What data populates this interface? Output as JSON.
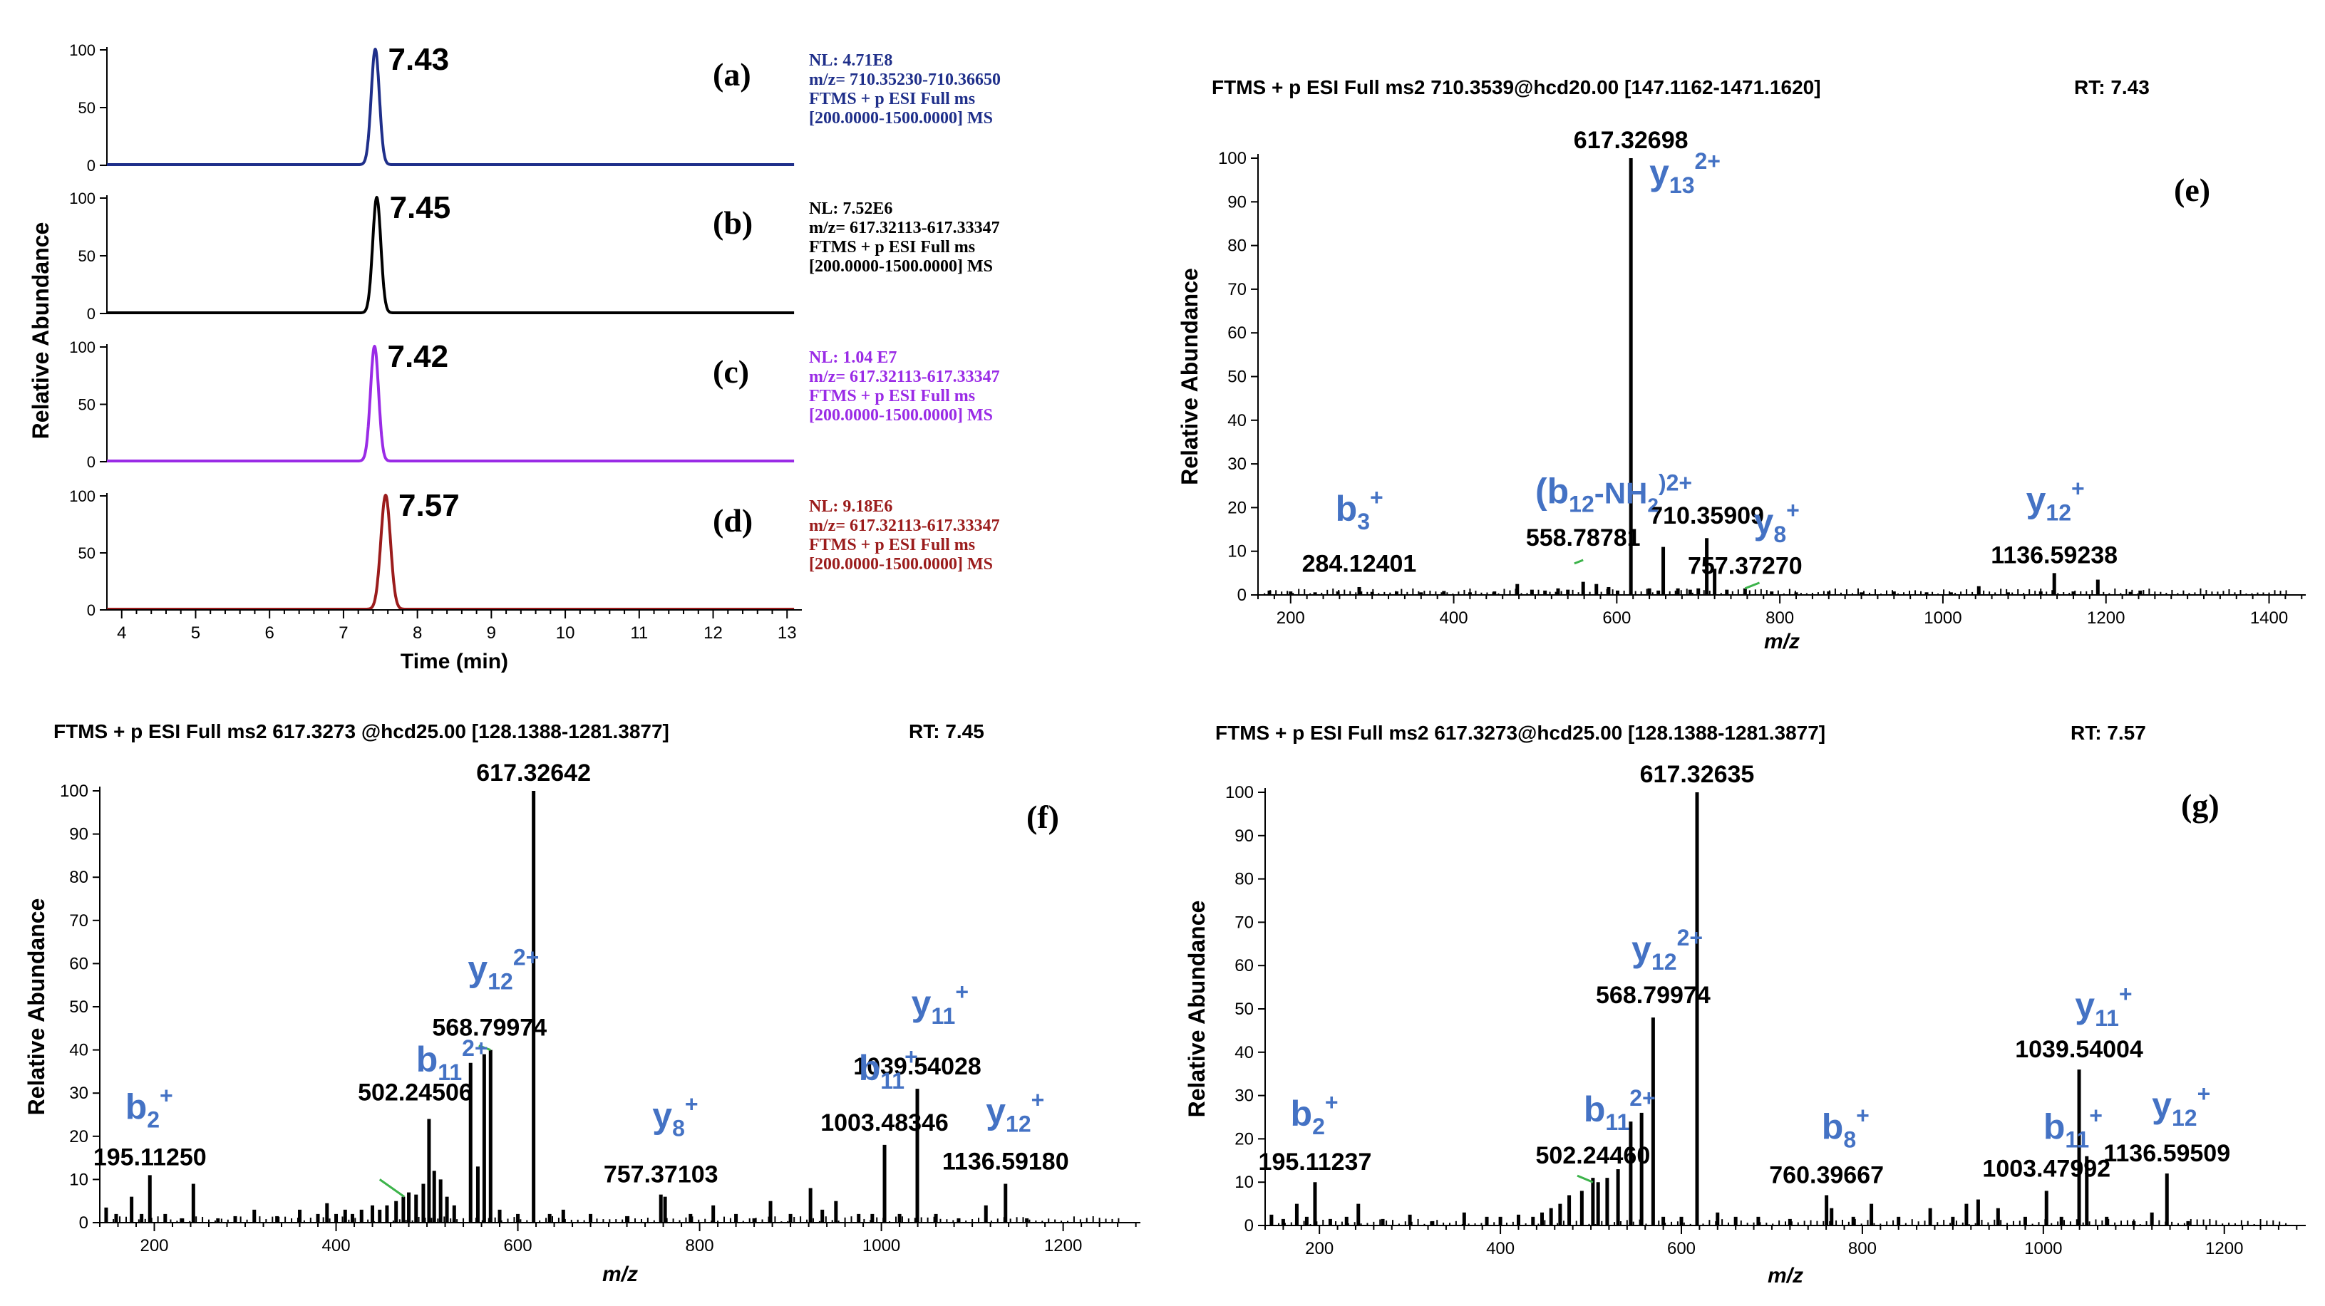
{
  "figure": {
    "colors": {
      "axis": "#000000",
      "ion": "#4472C4",
      "pointer": "#3cb34a"
    }
  },
  "chart_data": [
    {
      "id": "chroms",
      "type": "line",
      "x_range": [
        3.8,
        13.2
      ],
      "x_ticks": [
        4,
        5,
        6,
        7,
        8,
        9,
        10,
        11,
        12,
        13
      ],
      "y_ticks": [
        0,
        50,
        100
      ],
      "xlabel": "Time (min)",
      "ylabel": "Relative Abundance",
      "traces": [
        {
          "panel": "(a)",
          "rt": 7.43,
          "rt_label": "7.43",
          "sigma": 0.055,
          "color": "#1f2f8a",
          "info": [
            "NL: 4.71E8",
            "m/z= 710.35230-710.36650",
            "FTMS + p ESI Full ms",
            "[200.0000-1500.0000]  MS"
          ]
        },
        {
          "panel": "(b)",
          "rt": 7.45,
          "rt_label": "7.45",
          "sigma": 0.055,
          "color": "#000000",
          "info": [
            "NL: 7.52E6",
            "m/z= 617.32113-617.33347",
            "FTMS + p ESI Full ms",
            "[200.0000-1500.0000]  MS"
          ]
        },
        {
          "panel": "(c)",
          "rt": 7.42,
          "rt_label": "7.42",
          "sigma": 0.055,
          "color": "#9a2be6",
          "info": [
            "NL: 1.04 E7",
            "m/z= 617.32113-617.33347",
            "FTMS + p ESI Full ms",
            "[200.0000-1500.0000]  MS"
          ]
        },
        {
          "panel": "(d)",
          "rt": 7.57,
          "rt_label": "7.57",
          "sigma": 0.065,
          "color": "#9b1c1c",
          "info": [
            "NL: 9.18E6",
            "m/z= 617.32113-617.33347",
            "FTMS + p ESI Full ms",
            "[200.0000-1500.0000]  MS"
          ]
        }
      ]
    },
    {
      "id": "e",
      "type": "bar",
      "panel": "(e)",
      "title": "FTMS + p ESI Full ms2 710.3539@hcd20.00 [147.1162-1471.1620]",
      "rt": "RT:  7.43",
      "xlabel": "m/z",
      "ylabel": "Relative Abundance",
      "x_range": [
        160,
        1445
      ],
      "x_ticks": [
        200,
        400,
        600,
        800,
        1000,
        1200,
        1400
      ],
      "y_ticks": [
        0,
        10,
        20,
        30,
        40,
        50,
        60,
        70,
        80,
        90,
        100
      ],
      "peaks": [
        [
          174,
          1
        ],
        [
          200,
          0.8
        ],
        [
          230,
          0.6
        ],
        [
          258,
          0.8
        ],
        [
          284.12,
          1.8
        ],
        [
          300,
          0.7
        ],
        [
          330,
          0.8
        ],
        [
          360,
          0.6
        ],
        [
          388,
          0.9
        ],
        [
          420,
          0.6
        ],
        [
          450,
          0.8
        ],
        [
          478,
          2.5
        ],
        [
          496,
          1.2
        ],
        [
          512,
          1
        ],
        [
          528,
          1.5
        ],
        [
          540,
          1.2
        ],
        [
          558.79,
          3
        ],
        [
          575,
          2.5
        ],
        [
          590,
          1.8
        ],
        [
          601,
          1
        ],
        [
          617.33,
          100
        ],
        [
          640,
          1.5
        ],
        [
          651,
          1
        ],
        [
          657,
          11
        ],
        [
          675,
          1.5
        ],
        [
          690,
          1.2
        ],
        [
          700,
          1.5
        ],
        [
          710.36,
          13
        ],
        [
          720,
          6
        ],
        [
          735,
          1.2
        ],
        [
          757.37,
          1.5
        ],
        [
          790,
          0.8
        ],
        [
          820,
          0.6
        ],
        [
          860,
          0.8
        ],
        [
          900,
          0.6
        ],
        [
          940,
          0.8
        ],
        [
          980,
          0.6
        ],
        [
          1010,
          0.6
        ],
        [
          1044,
          2
        ],
        [
          1080,
          0.6
        ],
        [
          1120,
          0.8
        ],
        [
          1136.59,
          5
        ],
        [
          1160,
          0.8
        ],
        [
          1190,
          3.5
        ],
        [
          1230,
          0.7
        ],
        [
          1242,
          1
        ]
      ],
      "peak_labels": [
        {
          "text": "617.32698",
          "x": 617.33,
          "y": 100
        },
        {
          "text": "284.12401",
          "x": 284.12,
          "y": 3
        },
        {
          "text": "558.78781",
          "x": 558.79,
          "y": 9
        },
        {
          "text": "710.35909",
          "x": 710.36,
          "y": 14
        },
        {
          "text": "757.37270",
          "x": 757.37,
          "y": 2.5
        },
        {
          "text": "1136.59238",
          "x": 1136.59,
          "y": 5
        }
      ],
      "ions": [
        {
          "b": "y",
          "s": "13",
          "c": "2+",
          "x": 640,
          "y": 94
        },
        {
          "b": "b",
          "s": "3",
          "c": "+",
          "x": 255,
          "y": 17
        },
        {
          "b": "(b",
          "s": "12",
          "c": "",
          "tail": "-NH",
          "ts": "2",
          "tc": ")2+",
          "x": 500,
          "y": 21
        },
        {
          "b": "y",
          "s": "8",
          "c": "+",
          "x": 768,
          "y": 14
        },
        {
          "b": "y",
          "s": "12",
          "c": "+",
          "x": 1102,
          "y": 19
        }
      ],
      "pointers": [
        [
          558.79,
          8,
          548,
          7.2
        ],
        [
          757.37,
          1.5,
          775,
          2.8
        ]
      ]
    },
    {
      "id": "f",
      "type": "bar",
      "panel": "(f)",
      "title": "FTMS + p ESI Full ms2 617.3273 @hcd25.00 [128.1388-1281.3877]",
      "rt": "RT:  7.45",
      "xlabel": "m/z",
      "ylabel": "Relative Abundance",
      "x_range": [
        140,
        1285
      ],
      "x_ticks": [
        200,
        400,
        600,
        800,
        1000,
        1200
      ],
      "y_ticks": [
        0,
        10,
        20,
        30,
        40,
        50,
        60,
        70,
        80,
        90,
        100
      ],
      "peaks": [
        [
          147,
          3.5
        ],
        [
          158,
          2
        ],
        [
          175,
          6
        ],
        [
          186,
          2
        ],
        [
          195.11,
          11
        ],
        [
          212,
          2
        ],
        [
          230,
          1
        ],
        [
          243,
          9
        ],
        [
          270,
          1
        ],
        [
          289,
          1.5
        ],
        [
          310,
          3
        ],
        [
          335,
          1.5
        ],
        [
          360,
          3
        ],
        [
          380,
          2
        ],
        [
          390,
          4.5
        ],
        [
          400,
          2
        ],
        [
          410,
          3
        ],
        [
          418,
          2
        ],
        [
          428,
          3
        ],
        [
          440,
          4
        ],
        [
          448,
          3
        ],
        [
          456,
          4
        ],
        [
          466,
          5
        ],
        [
          474,
          6
        ],
        [
          480,
          7
        ],
        [
          488,
          6.5
        ],
        [
          496,
          9
        ],
        [
          502.25,
          24
        ],
        [
          508,
          12
        ],
        [
          515,
          10
        ],
        [
          522,
          6
        ],
        [
          530,
          4
        ],
        [
          548,
          37
        ],
        [
          556,
          13
        ],
        [
          563,
          39
        ],
        [
          570,
          40
        ],
        [
          580,
          3
        ],
        [
          600,
          2
        ],
        [
          617.33,
          100
        ],
        [
          635,
          2
        ],
        [
          650,
          3
        ],
        [
          680,
          2
        ],
        [
          720,
          1.5
        ],
        [
          757.37,
          6.5
        ],
        [
          762,
          6
        ],
        [
          790,
          2
        ],
        [
          815,
          4
        ],
        [
          840,
          2
        ],
        [
          860,
          1
        ],
        [
          878,
          5
        ],
        [
          900,
          2
        ],
        [
          922,
          8
        ],
        [
          935,
          3
        ],
        [
          950,
          5
        ],
        [
          975,
          2
        ],
        [
          990,
          2
        ],
        [
          1003.48,
          18
        ],
        [
          1020,
          2
        ],
        [
          1039.54,
          31
        ],
        [
          1060,
          2
        ],
        [
          1085,
          1
        ],
        [
          1115,
          4
        ],
        [
          1136.59,
          9
        ],
        [
          1160,
          1
        ]
      ],
      "peak_labels": [
        {
          "text": "617.32642",
          "x": 617.33,
          "y": 100
        },
        {
          "text": "195.11250",
          "x": 195.11,
          "y": 11
        },
        {
          "text": "502.24506",
          "x": 487,
          "y": 26
        },
        {
          "text": "568.79974",
          "x": 568.8,
          "y": 41
        },
        {
          "text": "757.37103",
          "x": 757.37,
          "y": 7
        },
        {
          "text": "1003.48346",
          "x": 1003.48,
          "y": 19
        },
        {
          "text": "1039.54028",
          "x": 1039.54,
          "y": 32
        },
        {
          "text": "1136.59180",
          "x": 1136.59,
          "y": 10
        }
      ],
      "ions": [
        {
          "b": "b",
          "s": "2",
          "c": "+",
          "x": 168,
          "y": 24
        },
        {
          "b": "b",
          "s": "11",
          "c": "2+",
          "x": 488,
          "y": 35
        },
        {
          "b": "y",
          "s": "12",
          "c": "2+",
          "x": 545,
          "y": 56
        },
        {
          "b": "y",
          "s": "8",
          "c": "+",
          "x": 748,
          "y": 22
        },
        {
          "b": "b",
          "s": "11",
          "c": "+",
          "x": 975,
          "y": 33
        },
        {
          "b": "y",
          "s": "11",
          "c": "+",
          "x": 1033,
          "y": 48
        },
        {
          "b": "y",
          "s": "12",
          "c": "+",
          "x": 1115,
          "y": 23
        }
      ],
      "pointers": [
        [
          475,
          6,
          448,
          10
        ],
        [
          570,
          40,
          557,
          41
        ]
      ]
    },
    {
      "id": "g",
      "type": "bar",
      "panel": "(g)",
      "title": "FTMS + p ESI Full ms2 617.3273@hcd25.00 [128.1388-1281.3877]",
      "rt": "RT:  7.57",
      "xlabel": "m/z",
      "ylabel": "Relative Abundance",
      "x_range": [
        140,
        1290
      ],
      "x_ticks": [
        200,
        400,
        600,
        800,
        1000,
        1200
      ],
      "y_ticks": [
        0,
        10,
        20,
        30,
        40,
        50,
        60,
        70,
        80,
        90,
        100
      ],
      "peaks": [
        [
          147,
          2.5
        ],
        [
          160,
          1.5
        ],
        [
          175,
          5
        ],
        [
          186,
          2
        ],
        [
          195.11,
          10
        ],
        [
          212,
          1.5
        ],
        [
          230,
          2
        ],
        [
          243,
          5
        ],
        [
          270,
          1.5
        ],
        [
          300,
          2.5
        ],
        [
          325,
          1
        ],
        [
          360,
          3
        ],
        [
          385,
          2
        ],
        [
          400,
          2
        ],
        [
          420,
          2.5
        ],
        [
          436,
          2
        ],
        [
          446,
          3
        ],
        [
          456,
          4
        ],
        [
          466,
          5
        ],
        [
          476,
          7
        ],
        [
          490,
          8
        ],
        [
          502.24,
          11
        ],
        [
          508,
          10
        ],
        [
          518,
          11
        ],
        [
          530,
          13
        ],
        [
          544,
          24
        ],
        [
          556,
          26
        ],
        [
          568.8,
          48
        ],
        [
          580,
          2
        ],
        [
          600,
          2
        ],
        [
          617.33,
          100
        ],
        [
          640,
          3
        ],
        [
          660,
          2
        ],
        [
          685,
          2
        ],
        [
          720,
          1.5
        ],
        [
          760.4,
          7
        ],
        [
          766,
          4
        ],
        [
          790,
          2
        ],
        [
          810,
          5
        ],
        [
          840,
          2
        ],
        [
          875,
          4
        ],
        [
          900,
          2
        ],
        [
          915,
          5
        ],
        [
          928,
          6
        ],
        [
          950,
          4
        ],
        [
          980,
          2
        ],
        [
          1003.48,
          8
        ],
        [
          1020,
          2
        ],
        [
          1039.54,
          36
        ],
        [
          1048,
          16
        ],
        [
          1070,
          2
        ],
        [
          1100,
          1
        ],
        [
          1120,
          3
        ],
        [
          1136.6,
          12
        ],
        [
          1160,
          1
        ]
      ],
      "peak_labels": [
        {
          "text": "617.32635",
          "x": 617.33,
          "y": 100
        },
        {
          "text": "195.11237",
          "x": 195.11,
          "y": 10.5
        },
        {
          "text": "502.24460",
          "x": 502.24,
          "y": 12
        },
        {
          "text": "568.79974",
          "x": 568.8,
          "y": 49
        },
        {
          "text": "760.39667",
          "x": 760.4,
          "y": 7.5
        },
        {
          "text": "1003.47992",
          "x": 1003.48,
          "y": 9
        },
        {
          "text": "1039.54004",
          "x": 1039.54,
          "y": 36.5
        },
        {
          "text": "1136.59509",
          "x": 1136.6,
          "y": 12.5
        }
      ],
      "ions": [
        {
          "b": "b",
          "s": "2",
          "c": "+",
          "x": 168,
          "y": 23
        },
        {
          "b": "b",
          "s": "11",
          "c": "2+",
          "x": 492,
          "y": 24
        },
        {
          "b": "y",
          "s": "12",
          "c": "2+",
          "x": 545,
          "y": 61
        },
        {
          "b": "b",
          "s": "8",
          "c": "+",
          "x": 755,
          "y": 20
        },
        {
          "b": "b",
          "s": "11",
          "c": "+",
          "x": 1000,
          "y": 20
        },
        {
          "b": "y",
          "s": "11",
          "c": "+",
          "x": 1035,
          "y": 48
        },
        {
          "b": "y",
          "s": "12",
          "c": "+",
          "x": 1120,
          "y": 25
        }
      ],
      "pointers": [
        [
          502.24,
          10,
          485,
          11.5
        ]
      ]
    }
  ]
}
